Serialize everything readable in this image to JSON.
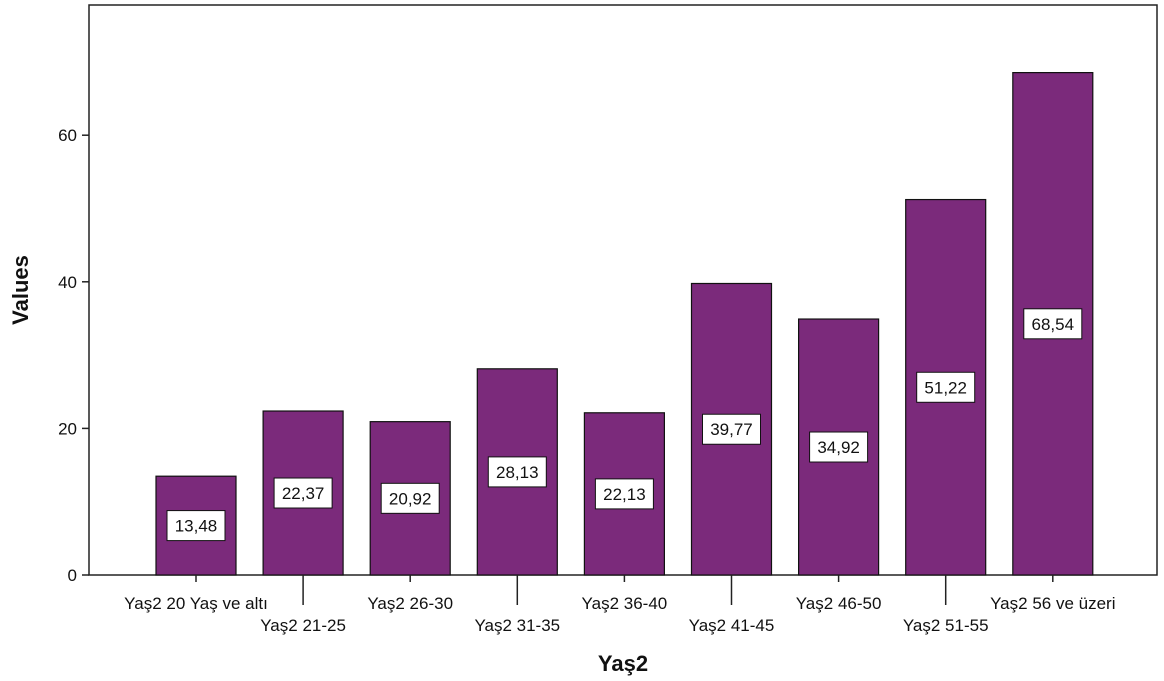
{
  "chart_data": {
    "type": "bar",
    "xlabel": "Yaş2",
    "ylabel": "Values",
    "ylim": [
      0,
      72
    ],
    "yticks": [
      0,
      20,
      40,
      60
    ],
    "grid": false,
    "bar_color": "#7B2A7B",
    "categories": [
      "Yaş2 20 Yaş ve altı",
      "Yaş2 21-25",
      "Yaş2 26-30",
      "Yaş2 31-35",
      "Yaş2 36-40",
      "Yaş2 41-45",
      "Yaş2 46-50",
      "Yaş2 51-55",
      "Yaş2 56 ve üzeri"
    ],
    "values": [
      13.48,
      22.37,
      20.92,
      28.13,
      22.13,
      39.77,
      34.92,
      51.22,
      68.54
    ],
    "value_labels": [
      "13,48",
      "22,37",
      "20,92",
      "28,13",
      "22,13",
      "39,77",
      "34,92",
      "51,22",
      "68,54"
    ]
  }
}
